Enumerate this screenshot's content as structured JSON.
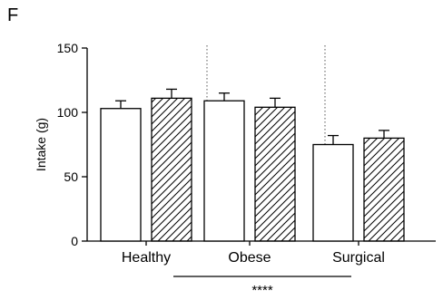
{
  "panel_label": "F",
  "chart_data": {
    "type": "bar",
    "ylabel": "Intake (g)",
    "ylim": [
      0,
      150
    ],
    "yticks": [
      0,
      50,
      100,
      150
    ],
    "groups": [
      "Healthy",
      "Obese",
      "Surgical"
    ],
    "bars": [
      {
        "group": "Healthy",
        "fill": "open",
        "value": 103,
        "error": 6
      },
      {
        "group": "Healthy",
        "fill": "hatched",
        "value": 111,
        "error": 7
      },
      {
        "group": "Obese",
        "fill": "open",
        "value": 109,
        "error": 6
      },
      {
        "group": "Obese",
        "fill": "hatched",
        "value": 104,
        "error": 7
      },
      {
        "group": "Surgical",
        "fill": "open",
        "value": 75,
        "error": 7
      },
      {
        "group": "Surgical",
        "fill": "hatched",
        "value": 80,
        "error": 6
      }
    ],
    "group_separators": "dotted",
    "significance": {
      "text": "****",
      "from": "Obese",
      "to": "Surgical"
    }
  }
}
